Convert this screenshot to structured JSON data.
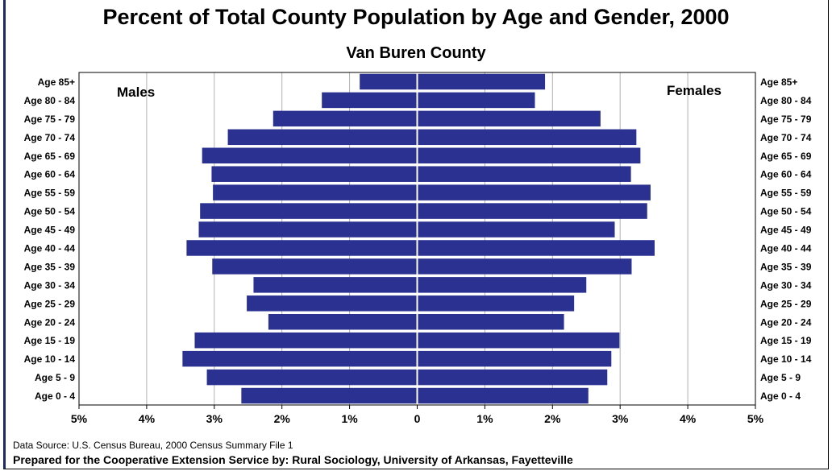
{
  "title": "Percent of Total County Population by Age and Gender, 2000",
  "subtitle": "Van Buren County",
  "footer": {
    "source": "Data Source:  U.S. Census Bureau, 2000 Census Summary File 1",
    "prepared": "Prepared for the Cooperative Extension Service by:  Rural Sociology, University of Arkansas, Fayetteville"
  },
  "colors": {
    "bar": "#2b3191",
    "grid": "#b0b0b0",
    "frame": "#000000"
  },
  "chart_data": {
    "type": "bar",
    "orientation": "horizontal",
    "title": "Percent of Total County Population by Age and Gender, 2000",
    "subtitle": "Van Buren County",
    "categories": [
      "Age 85+",
      "Age 80 - 84",
      "Age 75 - 79",
      "Age 70 - 74",
      "Age 65 - 69",
      "Age 60 - 64",
      "Age 55 - 59",
      "Age 50 - 54",
      "Age 45 - 49",
      "Age 40 - 44",
      "Age 35 - 39",
      "Age 30 - 34",
      "Age 25 - 29",
      "Age 20 - 24",
      "Age 15 - 19",
      "Age 10 - 14",
      "Age 5 - 9",
      "Age 0 - 4"
    ],
    "series": [
      {
        "name": "Males",
        "values": [
          0.85,
          1.41,
          2.13,
          2.8,
          3.18,
          3.04,
          3.02,
          3.21,
          3.23,
          3.41,
          3.03,
          2.42,
          2.52,
          2.2,
          3.29,
          3.47,
          3.11,
          2.6
        ]
      },
      {
        "name": "Females",
        "values": [
          1.89,
          1.74,
          2.71,
          3.24,
          3.3,
          3.16,
          3.45,
          3.4,
          2.92,
          3.51,
          3.17,
          2.5,
          2.32,
          2.17,
          2.99,
          2.87,
          2.81,
          2.53
        ]
      }
    ],
    "xlim": [
      -5,
      5
    ],
    "xticks": [
      "5%",
      "4%",
      "3%",
      "2%",
      "1%",
      "0",
      "1%",
      "2%",
      "3%",
      "4%",
      "5%"
    ],
    "grid": true,
    "legend": "series names printed inside plot: Males top-left, Females top-right"
  }
}
